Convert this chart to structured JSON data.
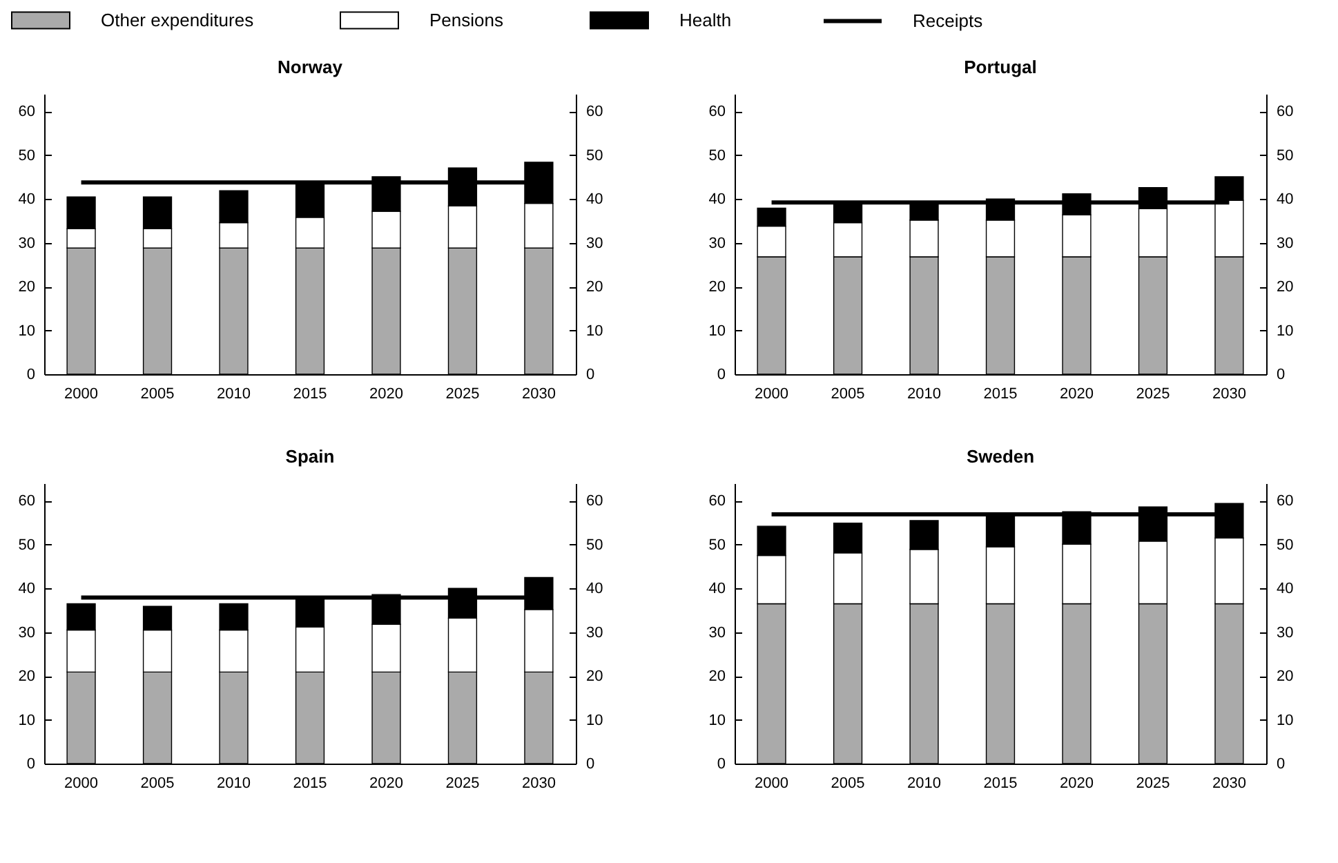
{
  "chart_data": [
    {
      "type": "bar",
      "title": "Norway",
      "stacked": true,
      "legend": "top",
      "categories": [
        "2000",
        "2005",
        "2010",
        "2015",
        "2020",
        "2025",
        "2030"
      ],
      "ylim": [
        0,
        64
      ],
      "yticks": [
        0,
        10,
        20,
        30,
        40,
        50,
        60
      ],
      "y2lim": [
        0,
        64
      ],
      "y2ticks": [
        0,
        10,
        20,
        30,
        40,
        50,
        60
      ],
      "series": [
        {
          "name": "Other expenditures",
          "color": "#aaaaaa",
          "values": [
            28.8,
            28.8,
            28.8,
            28.8,
            28.8,
            28.8,
            28.8
          ]
        },
        {
          "name": "Pensions",
          "color": "#ffffff",
          "values": [
            4.4,
            4.4,
            5.8,
            7.0,
            8.4,
            9.6,
            10.2
          ]
        },
        {
          "name": "Health",
          "color": "#000000",
          "values": [
            7.3,
            7.3,
            7.3,
            7.5,
            7.9,
            8.7,
            9.4
          ]
        },
        {
          "name": "Receipts",
          "type": "line",
          "color": "#000000",
          "values": [
            43.8,
            43.8,
            43.8,
            43.8,
            43.8,
            43.8,
            43.8
          ]
        }
      ]
    },
    {
      "type": "bar",
      "title": "Portugal",
      "stacked": true,
      "categories": [
        "2000",
        "2005",
        "2010",
        "2015",
        "2020",
        "2025",
        "2030"
      ],
      "ylim": [
        0,
        64
      ],
      "yticks": [
        0,
        10,
        20,
        30,
        40,
        50,
        60
      ],
      "y2lim": [
        0,
        64
      ],
      "y2ticks": [
        0,
        10,
        20,
        30,
        40,
        50,
        60
      ],
      "series": [
        {
          "color": "#aaaaaa",
          "values": [
            26.8,
            26.8,
            26.8,
            26.8,
            26.8,
            26.8,
            26.8
          ]
        },
        {
          "color": "#ffffff",
          "values": [
            7.0,
            7.8,
            8.4,
            8.4,
            9.6,
            11.0,
            12.9
          ]
        },
        {
          "color": "#000000",
          "values": [
            4.1,
            4.1,
            3.6,
            4.8,
            4.8,
            4.8,
            5.4
          ]
        },
        {
          "type": "line",
          "color": "#000000",
          "values": [
            39.2,
            39.2,
            39.2,
            39.2,
            39.2,
            39.2,
            39.2
          ]
        }
      ]
    },
    {
      "type": "bar",
      "title": "Spain",
      "stacked": true,
      "categories": [
        "2000",
        "2005",
        "2010",
        "2015",
        "2020",
        "2025",
        "2030"
      ],
      "ylim": [
        0,
        64
      ],
      "yticks": [
        0,
        10,
        20,
        30,
        40,
        50,
        60
      ],
      "y2lim": [
        0,
        64
      ],
      "y2ticks": [
        0,
        10,
        20,
        30,
        40,
        50,
        60
      ],
      "series": [
        {
          "color": "#aaaaaa",
          "values": [
            20.9,
            20.9,
            20.9,
            20.9,
            20.9,
            20.9,
            20.9
          ]
        },
        {
          "color": "#ffffff",
          "values": [
            9.6,
            9.6,
            9.6,
            10.3,
            10.9,
            12.3,
            14.3
          ]
        },
        {
          "color": "#000000",
          "values": [
            6.0,
            5.4,
            6.0,
            6.2,
            6.8,
            6.8,
            7.3
          ]
        },
        {
          "type": "line",
          "color": "#000000",
          "values": [
            37.9,
            37.9,
            37.9,
            37.9,
            37.9,
            37.9,
            37.9
          ]
        }
      ]
    },
    {
      "type": "bar",
      "title": "Sweden",
      "stacked": true,
      "categories": [
        "2000",
        "2005",
        "2010",
        "2015",
        "2020",
        "2025",
        "2030"
      ],
      "ylim": [
        0,
        64
      ],
      "yticks": [
        0,
        10,
        20,
        30,
        40,
        50,
        60
      ],
      "y2lim": [
        0,
        64
      ],
      "y2ticks": [
        0,
        10,
        20,
        30,
        40,
        50,
        60
      ],
      "series": [
        {
          "color": "#aaaaaa",
          "values": [
            36.5,
            36.5,
            36.5,
            36.5,
            36.5,
            36.5,
            36.5
          ]
        },
        {
          "color": "#ffffff",
          "values": [
            11.0,
            11.6,
            12.4,
            13.0,
            13.6,
            14.3,
            15.0
          ]
        },
        {
          "color": "#000000",
          "values": [
            6.7,
            6.8,
            6.6,
            7.5,
            7.4,
            7.8,
            7.9
          ]
        },
        {
          "type": "line",
          "color": "#000000",
          "values": [
            56.9,
            56.9,
            56.9,
            56.9,
            56.9,
            56.9,
            56.9
          ]
        }
      ]
    }
  ]
}
